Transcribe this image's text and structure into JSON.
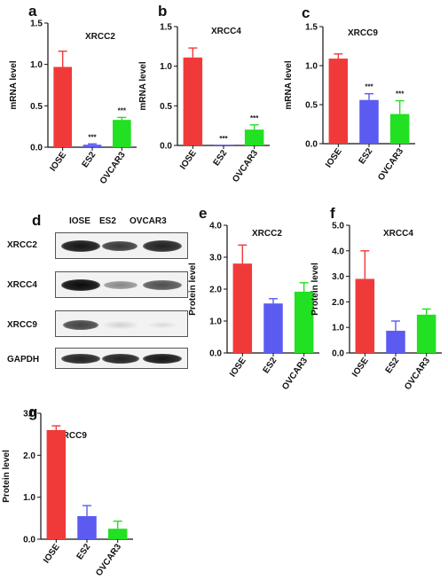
{
  "panel_letters": [
    "a",
    "b",
    "c",
    "d",
    "e",
    "f",
    "g"
  ],
  "colors": {
    "red": "#f03a3a",
    "blue": "#5b5bf2",
    "green": "#22e022",
    "bars_outline": "#222222"
  },
  "blot": {
    "lanes": [
      "IOSE",
      "ES2",
      "OVCAR3"
    ],
    "rows": [
      {
        "label": "XRCC2",
        "intensity": [
          0.95,
          0.8,
          0.9
        ]
      },
      {
        "label": "XRCC4",
        "intensity": [
          1.0,
          0.45,
          0.7
        ]
      },
      {
        "label": "XRCC9",
        "intensity": [
          0.75,
          0.12,
          0.08
        ]
      },
      {
        "label": "GAPDH",
        "intensity": [
          0.9,
          0.9,
          0.95
        ]
      }
    ]
  },
  "chart_data": [
    {
      "panel": "a",
      "type": "bar",
      "title": "XRCC2",
      "ylabel": "mRNA level",
      "categories": [
        "IOSE",
        "ES2",
        "OVCAR3"
      ],
      "values": [
        0.97,
        0.03,
        0.33
      ],
      "errors": [
        0.19,
        0.01,
        0.03
      ],
      "significance": [
        "",
        "***",
        "***"
      ],
      "ylim": [
        0,
        1.5
      ],
      "yticks": [
        "0.0",
        "0.5",
        "1.0",
        "1.5"
      ]
    },
    {
      "panel": "b",
      "type": "bar",
      "title": "XRCC4",
      "ylabel": "mRNA level",
      "categories": [
        "IOSE",
        "ES2",
        "OVCAR3"
      ],
      "values": [
        1.11,
        0.0,
        0.2
      ],
      "errors": [
        0.12,
        0.0,
        0.06
      ],
      "significance": [
        "",
        "***",
        "***"
      ],
      "ylim": [
        0,
        1.5
      ],
      "yticks": [
        "0.0",
        "0.5",
        "1.0",
        "1.5"
      ]
    },
    {
      "panel": "c",
      "type": "bar",
      "title": "XRCC9",
      "ylabel": "mRNA level",
      "categories": [
        "IOSE",
        "ES2",
        "OVCAR3"
      ],
      "values": [
        1.09,
        0.56,
        0.38
      ],
      "errors": [
        0.06,
        0.08,
        0.17
      ],
      "significance": [
        "",
        "***",
        "***"
      ],
      "ylim": [
        0,
        1.5
      ],
      "yticks": [
        "0.0",
        "0.5",
        "1.0",
        "1.5"
      ]
    },
    {
      "panel": "e",
      "type": "bar",
      "title": "XRCC2",
      "ylabel": "Protein level",
      "categories": [
        "IOSE",
        "ES2",
        "OVCAR3"
      ],
      "values": [
        2.8,
        1.55,
        1.92
      ],
      "errors": [
        0.58,
        0.15,
        0.28
      ],
      "significance": [
        "",
        "",
        ""
      ],
      "ylim": [
        0,
        4
      ],
      "yticks": [
        "0.0",
        "1.0",
        "2.0",
        "3.0",
        "4.0"
      ]
    },
    {
      "panel": "f",
      "type": "bar",
      "title": "XRCC4",
      "ylabel": "Protein level",
      "categories": [
        "IOSE",
        "ES2",
        "OVCAR3"
      ],
      "values": [
        2.9,
        0.87,
        1.5
      ],
      "errors": [
        1.1,
        0.38,
        0.22
      ],
      "significance": [
        "",
        "",
        ""
      ],
      "ylim": [
        0,
        5
      ],
      "yticks": [
        "0.0",
        "1.0",
        "2.0",
        "3.0",
        "4.0",
        "5.0"
      ]
    },
    {
      "panel": "g",
      "type": "bar",
      "title": "XRCC9",
      "ylabel": "Protein level",
      "categories": [
        "IOSE",
        "ES2",
        "OVCAR3"
      ],
      "values": [
        2.6,
        0.55,
        0.25
      ],
      "errors": [
        0.1,
        0.25,
        0.18
      ],
      "significance": [
        "",
        "",
        ""
      ],
      "ylim": [
        0,
        3
      ],
      "yticks": [
        "0.0",
        "1.0",
        "2.0",
        "3.0"
      ]
    }
  ]
}
